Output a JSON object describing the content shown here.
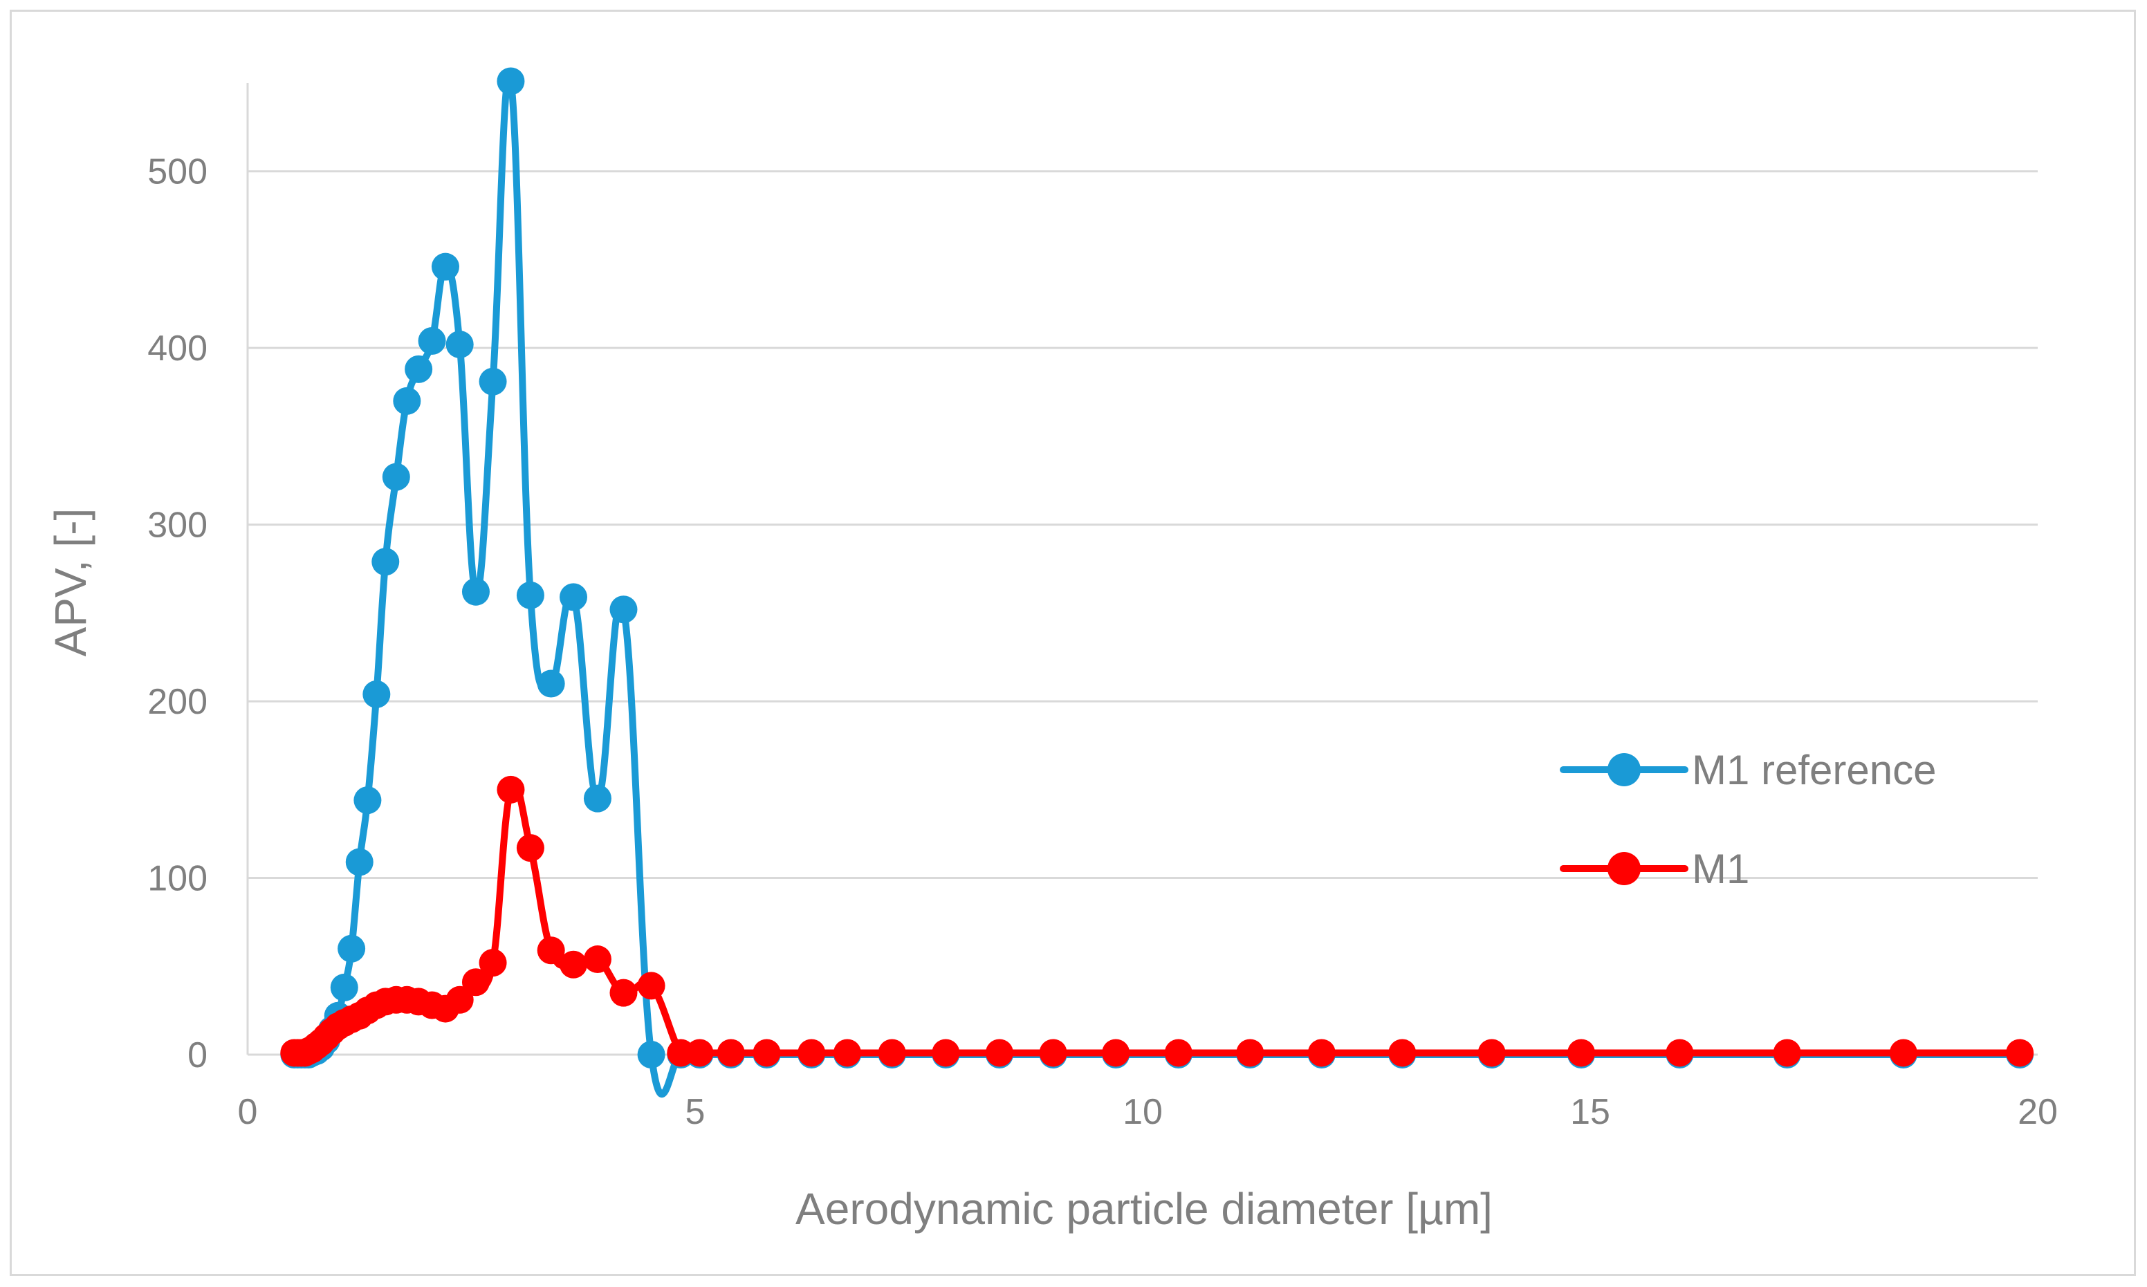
{
  "chart_data": {
    "type": "line",
    "title": "",
    "xlabel": "Aerodynamic particle diameter [µm]",
    "ylabel": "APV, [-]",
    "xlim": [
      0,
      20
    ],
    "ylim": [
      0,
      550
    ],
    "xticks": [
      0,
      5,
      10,
      15,
      20
    ],
    "yticks": [
      0,
      100,
      200,
      300,
      400,
      500
    ],
    "grid": "horizontal",
    "legend_position": "right",
    "series": [
      {
        "name": "M1 reference",
        "color": "#1a9ad6",
        "x": [
          0.52,
          0.56,
          0.6,
          0.64,
          0.68,
          0.72,
          0.77,
          0.82,
          0.88,
          0.94,
          1.01,
          1.08,
          1.16,
          1.25,
          1.34,
          1.44,
          1.54,
          1.66,
          1.78,
          1.91,
          2.06,
          2.21,
          2.37,
          2.55,
          2.74,
          2.94,
          3.16,
          3.39,
          3.64,
          3.91,
          4.2,
          4.51,
          4.84,
          5.05,
          5.4,
          5.8,
          6.3,
          6.7,
          7.2,
          7.8,
          8.4,
          9.0,
          9.7,
          10.4,
          11.2,
          12.0,
          12.9,
          13.9,
          14.9,
          16.0,
          17.2,
          18.5,
          19.8
        ],
        "y": [
          0,
          0,
          0,
          0,
          0,
          1,
          2,
          4,
          8,
          14,
          22,
          38,
          60,
          109,
          144,
          204,
          279,
          327,
          370,
          388,
          404,
          446,
          402,
          262,
          381,
          551,
          260,
          210,
          259,
          145,
          252,
          0,
          0,
          0,
          0,
          0,
          0,
          0,
          0,
          0,
          0,
          0,
          0,
          0,
          0,
          0,
          0,
          0,
          0,
          0,
          0,
          0,
          0
        ]
      },
      {
        "name": "M1",
        "color": "#ff0000",
        "x": [
          0.52,
          0.56,
          0.6,
          0.64,
          0.68,
          0.72,
          0.77,
          0.82,
          0.88,
          0.94,
          1.01,
          1.08,
          1.16,
          1.25,
          1.34,
          1.44,
          1.54,
          1.66,
          1.78,
          1.91,
          2.06,
          2.21,
          2.37,
          2.55,
          2.74,
          2.94,
          3.16,
          3.39,
          3.64,
          3.91,
          4.2,
          4.51,
          4.84,
          5.05,
          5.4,
          5.8,
          6.3,
          6.7,
          7.2,
          7.8,
          8.4,
          9.0,
          9.7,
          10.4,
          11.2,
          12.0,
          12.9,
          13.9,
          14.9,
          16.0,
          17.2,
          18.5,
          19.8
        ],
        "y": [
          1,
          1,
          1,
          1,
          2,
          3,
          5,
          7,
          10,
          13,
          16,
          18,
          20,
          22,
          25,
          28,
          30,
          31,
          31,
          30,
          28,
          26,
          31,
          41,
          52,
          150,
          117,
          59,
          51,
          54,
          35,
          39,
          1,
          1,
          1,
          1,
          1,
          1,
          1,
          1,
          1,
          1,
          1,
          1,
          1,
          1,
          1,
          1,
          1,
          1,
          1,
          1,
          1
        ]
      }
    ]
  }
}
